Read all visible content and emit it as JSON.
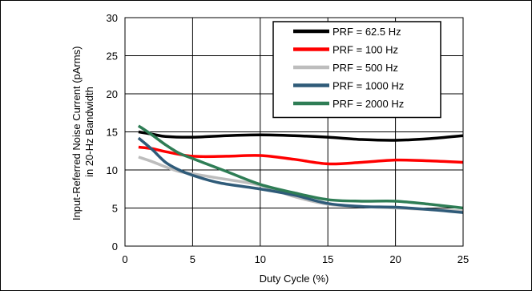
{
  "chart_data": {
    "type": "line",
    "title": "",
    "xlabel": "Duty Cycle (%)",
    "ylabel_lines": [
      "Input-Referred Noise Current (pArms)",
      "in 20-Hz Bandwidth"
    ],
    "xlim": [
      0,
      25
    ],
    "ylim": [
      0,
      30
    ],
    "xticks": [
      "0",
      "5",
      "10",
      "15",
      "20",
      "25"
    ],
    "yticks": [
      "0",
      "5",
      "10",
      "15",
      "20",
      "25",
      "30"
    ],
    "grid": true,
    "legend_position": "top-right",
    "series": [
      {
        "name": "PRF = 62.5 Hz",
        "color": "#000000",
        "x": [
          1,
          2,
          3,
          5,
          7.5,
          10,
          12.5,
          15,
          17.5,
          20,
          22.5,
          25
        ],
        "y": [
          15.0,
          14.7,
          14.4,
          14.3,
          14.5,
          14.6,
          14.5,
          14.3,
          14.0,
          13.9,
          14.1,
          14.5
        ]
      },
      {
        "name": "PRF = 100 Hz",
        "color": "#ff0000",
        "x": [
          1,
          2,
          3,
          5,
          7.5,
          10,
          12.5,
          15,
          17.5,
          20,
          22.5,
          25
        ],
        "y": [
          13.0,
          12.8,
          12.4,
          11.8,
          11.8,
          11.9,
          11.4,
          10.8,
          11.0,
          11.3,
          11.2,
          11.0
        ]
      },
      {
        "name": "PRF = 500 Hz",
        "color": "#bdbdbd",
        "x": [
          1,
          2,
          3,
          4,
          5,
          7,
          10,
          12.5,
          15,
          17.5,
          20,
          22.5,
          25
        ],
        "y": [
          11.7,
          11.1,
          10.4,
          9.8,
          9.5,
          8.9,
          8.0,
          6.5,
          5.5,
          5.2,
          5.0,
          4.8,
          4.6
        ]
      },
      {
        "name": "PRF = 1000 Hz",
        "color": "#2f5b79",
        "x": [
          1,
          2,
          3,
          4,
          5,
          7,
          10,
          12.5,
          15,
          17.5,
          20,
          22.5,
          25
        ],
        "y": [
          14.2,
          12.7,
          11.0,
          10.0,
          9.3,
          8.3,
          7.5,
          6.7,
          5.6,
          5.2,
          5.1,
          4.8,
          4.4
        ]
      },
      {
        "name": "PRF = 2000 Hz",
        "color": "#2e7d55",
        "x": [
          1,
          2,
          3,
          4,
          5,
          7.5,
          10,
          12.5,
          15,
          17.5,
          20,
          22.5,
          25
        ],
        "y": [
          15.8,
          14.6,
          13.3,
          12.2,
          11.5,
          9.8,
          8.1,
          7.0,
          6.1,
          5.9,
          5.9,
          5.5,
          5.0
        ]
      }
    ]
  }
}
